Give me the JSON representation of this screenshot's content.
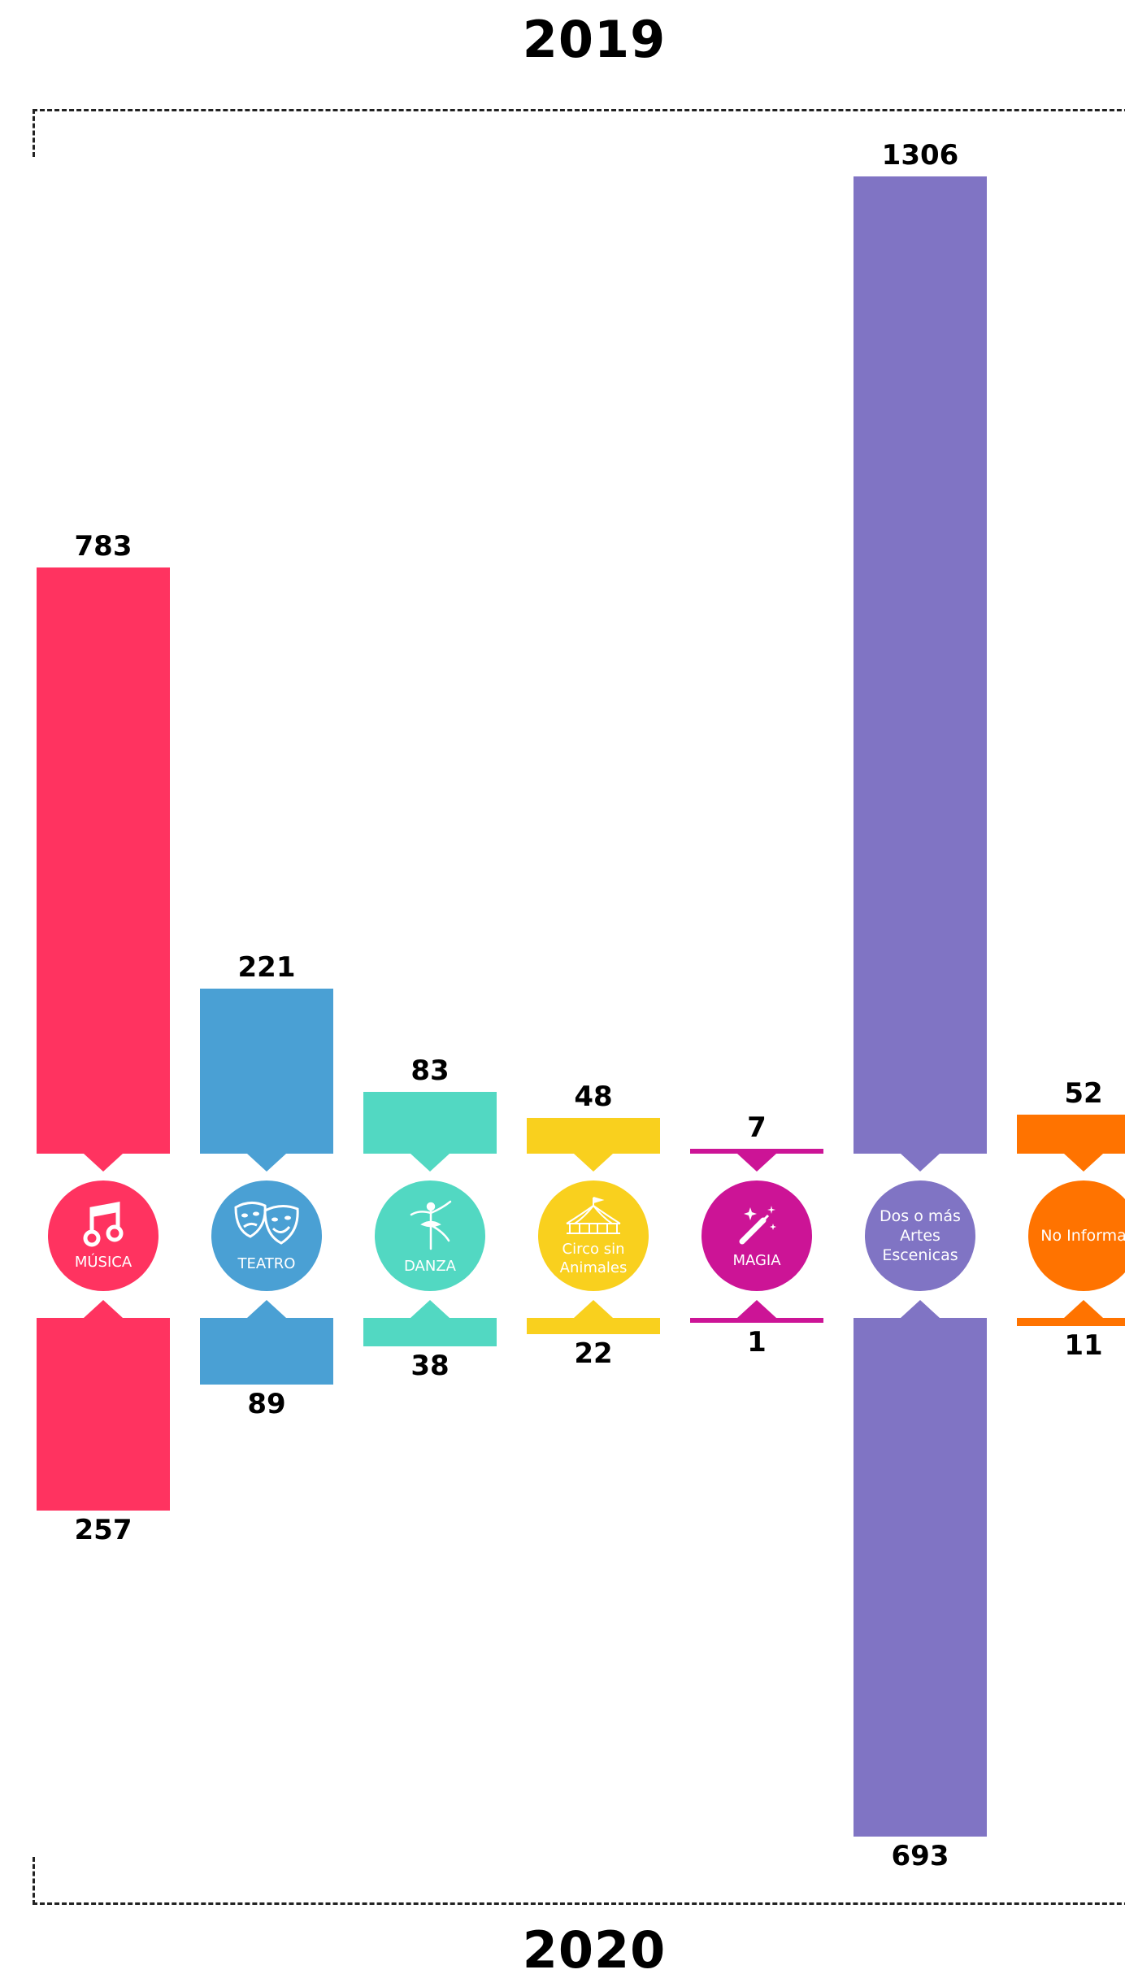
{
  "title_top": "2019",
  "title_bottom": "2020",
  "chart_data": {
    "type": "bar",
    "title": "",
    "categories": [
      "MÚSICA",
      "TEATRO",
      "DANZA",
      "Circo sin Animales",
      "MAGIA",
      "Dos o más Artes Escenicas",
      "No Informa"
    ],
    "series": [
      {
        "name": "2019",
        "values": [
          783,
          221,
          83,
          48,
          7,
          1306,
          52
        ]
      },
      {
        "name": "2020",
        "values": [
          257,
          89,
          38,
          22,
          1,
          693,
          11
        ]
      }
    ],
    "colors": [
      "#ff3360",
      "#4aa0d4",
      "#52d8c2",
      "#f9d01e",
      "#cc1496",
      "#8074c4",
      "#ff7300"
    ],
    "icons": [
      "music-note-icon",
      "theater-masks-icon",
      "ballerina-icon",
      "circus-tent-icon",
      "magic-wand-icon",
      "",
      ""
    ],
    "ylim": [
      0,
      1306
    ],
    "layout": "mirrored-bars"
  }
}
